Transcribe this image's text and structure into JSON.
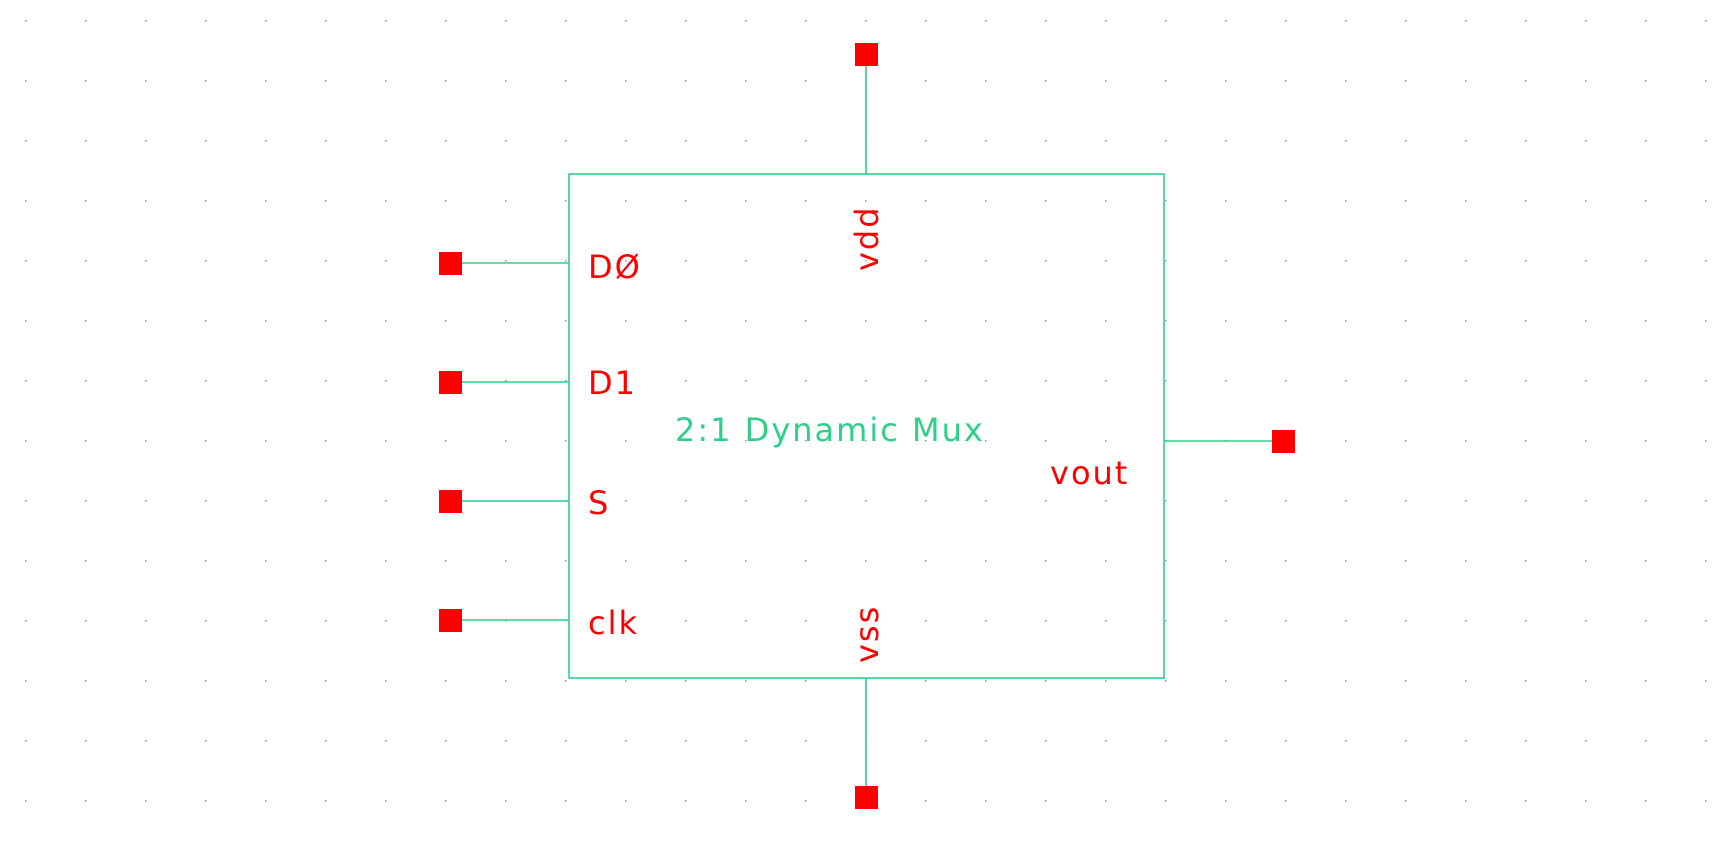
{
  "symbol": {
    "title": "2:1 Dynamic Mux",
    "outline_color": "#2fcf8a",
    "pin_color": "#ff0000",
    "grid_dot_color": "#9a9a9a",
    "pins": {
      "d0": "DØ",
      "d1": "D1",
      "s": "S",
      "clk": "clk",
      "vdd": "vdd",
      "vss": "vss",
      "vout": "vout"
    }
  }
}
